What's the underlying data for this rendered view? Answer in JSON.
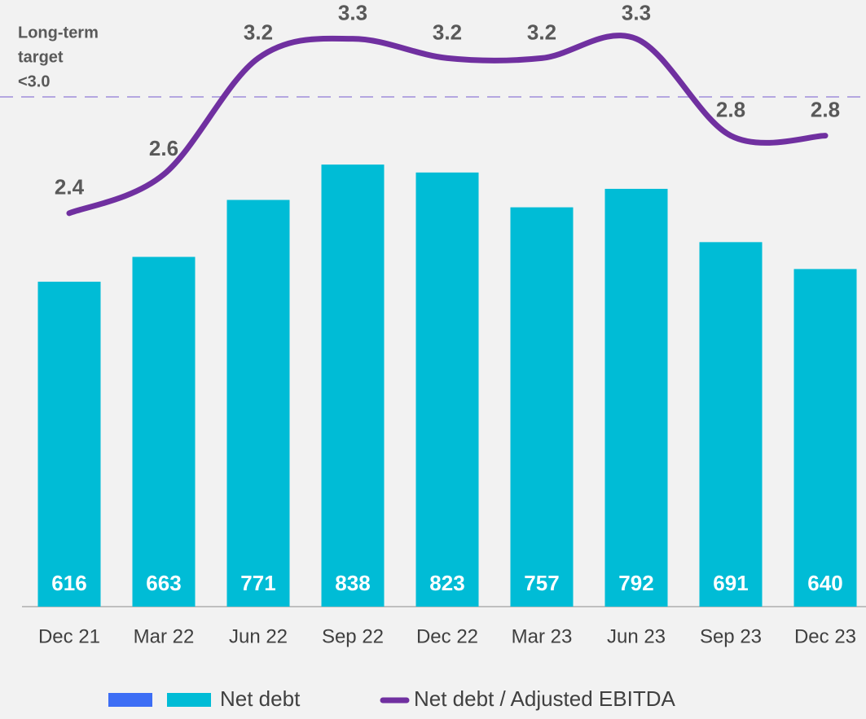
{
  "chart_data": {
    "type": "bar_line",
    "categories": [
      "Dec 21",
      "Mar 22",
      "Jun  22",
      "Sep 22",
      "Dec 22",
      "Mar 23",
      "Jun 23",
      "Sep 23",
      "Dec 23"
    ],
    "series": [
      {
        "name": "Net debt",
        "type": "bar",
        "color": "#00bcd6",
        "values": [
          616,
          663,
          771,
          838,
          823,
          757,
          792,
          691,
          640
        ]
      },
      {
        "name": "Net debt / Adjusted EBITDA",
        "type": "line",
        "axis": "y2",
        "color": "#7030a0",
        "values": [
          2.4,
          2.6,
          3.2,
          3.3,
          3.2,
          3.2,
          3.3,
          2.8,
          2.8
        ]
      }
    ],
    "ylim": [
      0,
      1150
    ],
    "y2lim": [
      0.37,
      3.5
    ],
    "target": {
      "value": 3.0,
      "label": [
        "Long-term",
        "target",
        "<3.0"
      ],
      "color": "#b4a7e0"
    }
  }
}
